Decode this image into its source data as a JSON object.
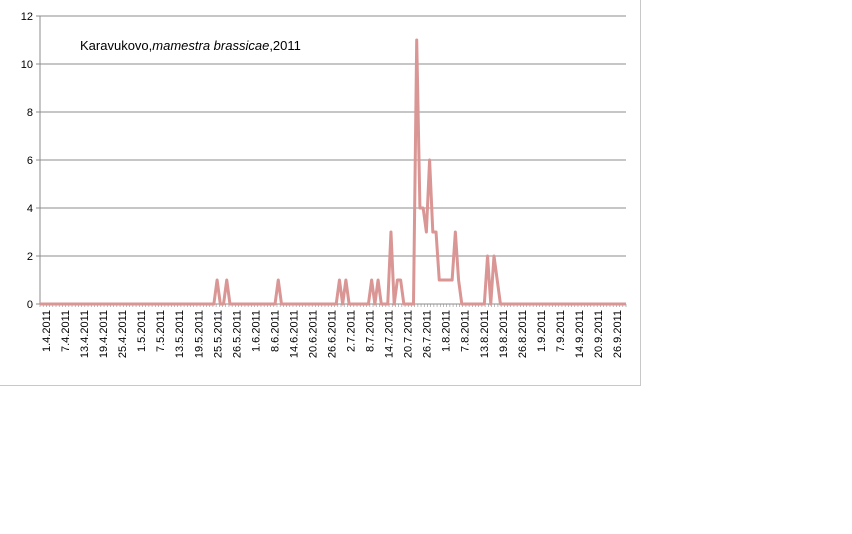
{
  "chart_data": {
    "type": "line",
    "title": {
      "prefix": "Karavukovo,",
      "italic": "mamestra brassicae",
      "suffix": ",2011"
    },
    "xlabel": "",
    "ylabel": "",
    "ylim": [
      0,
      12
    ],
    "yticks": [
      0,
      2,
      4,
      6,
      8,
      10,
      12
    ],
    "grid": true,
    "legend": "none",
    "line_color": "#d99694",
    "x_start": "1.4.2011",
    "x_end": "30.9.2011",
    "x_tick_labels": [
      "1.4.2011",
      "7.4.2011",
      "13.4.2011",
      "19.4.2011",
      "25.4.2011",
      "1.5.2011",
      "7.5.2011",
      "13.5.2011",
      "19.5.2011",
      "25.5.2011",
      "26.5.2011",
      "1.6.2011",
      "8.6.2011",
      "14.6.2011",
      "20.6.2011",
      "26.6.2011",
      "2.7.2011",
      "8.7.2011",
      "14.7.2011",
      "20.7.2011",
      "26.7.2011",
      "1.8.2011",
      "7.8.2011",
      "13.8.2011",
      "19.8.2011",
      "26.8.2011",
      "1.9.2011",
      "7.9.2011",
      "14.9.2011",
      "20.9.2011",
      "26.9.2011"
    ],
    "series": [
      {
        "points": [
          [
            "1.4.2011",
            0
          ],
          [
            "25.5.2011",
            0
          ],
          [
            "26.5.2011",
            1
          ],
          [
            "27.5.2011",
            0
          ],
          [
            "28.5.2011",
            0
          ],
          [
            "29.5.2011",
            1
          ],
          [
            "30.5.2011",
            0
          ],
          [
            "13.6.2011",
            0
          ],
          [
            "14.6.2011",
            1
          ],
          [
            "15.6.2011",
            0
          ],
          [
            "2.7.2011",
            0
          ],
          [
            "3.7.2011",
            1
          ],
          [
            "4.7.2011",
            0
          ],
          [
            "5.7.2011",
            1
          ],
          [
            "6.7.2011",
            0
          ],
          [
            "12.7.2011",
            0
          ],
          [
            "13.7.2011",
            1
          ],
          [
            "14.7.2011",
            0
          ],
          [
            "15.7.2011",
            1
          ],
          [
            "16.7.2011",
            0
          ],
          [
            "18.7.2011",
            0
          ],
          [
            "19.7.2011",
            3
          ],
          [
            "20.7.2011",
            0
          ],
          [
            "21.7.2011",
            1
          ],
          [
            "22.7.2011",
            1
          ],
          [
            "23.7.2011",
            0
          ],
          [
            "26.7.2011",
            0
          ],
          [
            "27.7.2011",
            11
          ],
          [
            "28.7.2011",
            4
          ],
          [
            "29.7.2011",
            4
          ],
          [
            "30.7.2011",
            3
          ],
          [
            "31.7.2011",
            6
          ],
          [
            "1.8.2011",
            3
          ],
          [
            "2.8.2011",
            3
          ],
          [
            "3.8.2011",
            1
          ],
          [
            "4.8.2011",
            1
          ],
          [
            "5.8.2011",
            1
          ],
          [
            "6.8.2011",
            1
          ],
          [
            "7.8.2011",
            1
          ],
          [
            "8.8.2011",
            3
          ],
          [
            "9.8.2011",
            1
          ],
          [
            "10.8.2011",
            0
          ],
          [
            "17.8.2011",
            0
          ],
          [
            "18.8.2011",
            2
          ],
          [
            "19.8.2011",
            0
          ],
          [
            "20.8.2011",
            2
          ],
          [
            "21.8.2011",
            1
          ],
          [
            "22.8.2011",
            0
          ],
          [
            "30.9.2011",
            0
          ]
        ]
      }
    ]
  }
}
